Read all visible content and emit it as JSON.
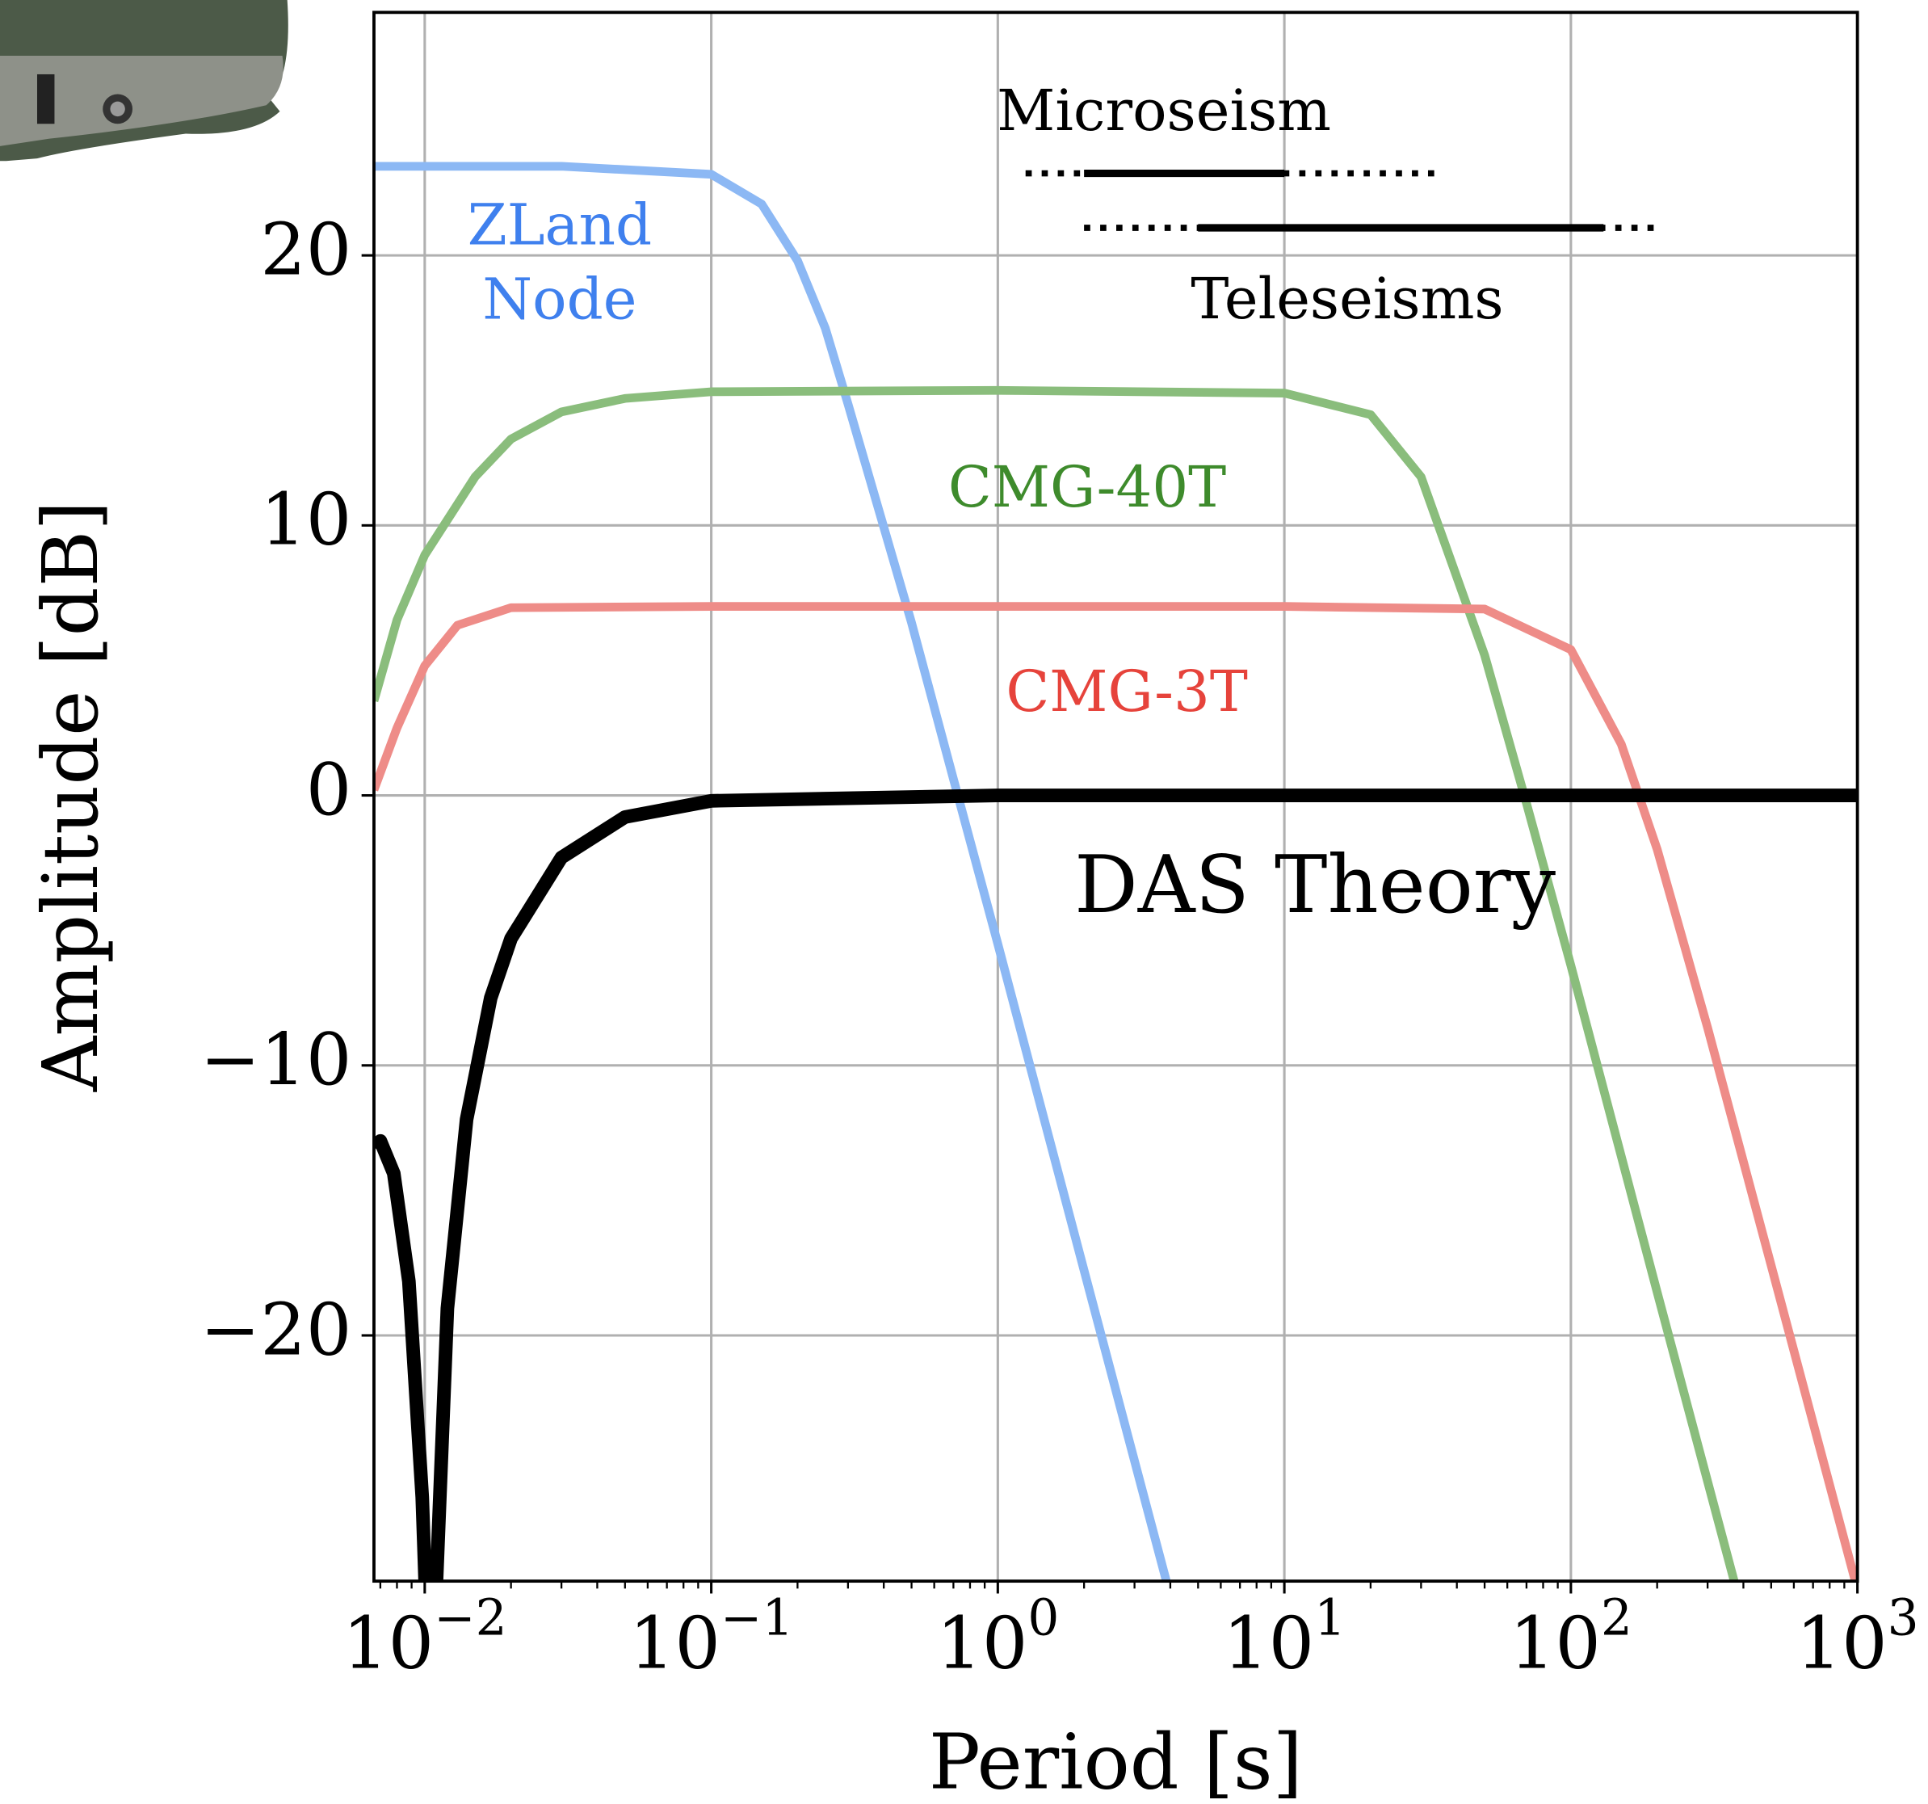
{
  "chart_data": {
    "type": "line",
    "xlabel": "Period [s]",
    "ylabel": "Amplitude [dB]",
    "xscale": "log",
    "grid": true,
    "xlim": [
      0.00665,
      1000
    ],
    "ylim": [
      -29.1,
      29.0
    ],
    "xticks": [
      {
        "value": 0.01,
        "label": "10−2"
      },
      {
        "value": 0.1,
        "label": "10−1"
      },
      {
        "value": 1,
        "label": "100"
      },
      {
        "value": 10,
        "label": "101"
      },
      {
        "value": 100,
        "label": "102"
      },
      {
        "value": 1000,
        "label": "103"
      }
    ],
    "yticks": [
      20,
      10,
      0,
      {
        "value": -10,
        "label": "−10"
      },
      {
        "value": -20,
        "label": "−20"
      }
    ],
    "series": [
      {
        "name": "ZLand Node",
        "color": "#8cb8f4",
        "label_color": "#3f80ee",
        "x": [
          0.00665,
          0.01,
          0.03,
          0.1,
          0.15,
          0.2,
          0.25,
          0.3,
          0.5,
          0.7,
          1,
          2,
          4.2
        ],
        "values": [
          23.3,
          23.3,
          23.3,
          23.0,
          21.9,
          19.8,
          17.3,
          14.5,
          6.4,
          0.6,
          -5.5,
          -17.6,
          -30.5
        ]
      },
      {
        "name": "CMG-40T",
        "color": "#8abd7c",
        "label_color": "#3e8b2c",
        "x": [
          0.00665,
          0.008,
          0.01,
          0.015,
          0.02,
          0.03,
          0.05,
          0.1,
          1,
          10,
          20,
          30,
          50,
          70,
          100,
          200,
          389
        ],
        "values": [
          3.5,
          6.5,
          8.9,
          11.8,
          13.2,
          14.2,
          14.7,
          14.95,
          15,
          14.9,
          14.1,
          11.8,
          5.2,
          -0.3,
          -6.3,
          -18.4,
          -29.9
        ]
      },
      {
        "name": "CMG-3T",
        "color": "#ee8c88",
        "label_color": "#e6433b",
        "x": [
          0.00665,
          0.008,
          0.01,
          0.013,
          0.02,
          0.1,
          10,
          50,
          100,
          150,
          200,
          300,
          500,
          1000
        ],
        "values": [
          0.2,
          2.5,
          4.8,
          6.3,
          6.95,
          7,
          7,
          6.9,
          5.4,
          1.9,
          -2.0,
          -8.6,
          -17.4,
          -29.4
        ]
      },
      {
        "name": "DAS Theory",
        "color": "#000000",
        "label_color": "#000000",
        "x": [
          0.00665,
          0.007,
          0.0078,
          0.0088,
          0.0098,
          0.0101,
          0.0105,
          0.0109,
          0.012,
          0.014,
          0.017,
          0.02,
          0.03,
          0.05,
          0.1,
          1,
          1000
        ],
        "values": [
          -13,
          -12.8,
          -14,
          -18,
          -26,
          -30,
          -40,
          -30,
          -19,
          -12,
          -7.5,
          -5.3,
          -2.3,
          -0.8,
          -0.2,
          0,
          0
        ]
      }
    ],
    "bands": [
      {
        "name": "Microseism",
        "dotted": [
          1.25,
          34
        ],
        "solid": [
          2,
          10
        ]
      },
      {
        "name": "Teleseisms",
        "dotted": [
          2,
          200
        ],
        "solid": [
          5,
          130
        ]
      }
    ]
  }
}
